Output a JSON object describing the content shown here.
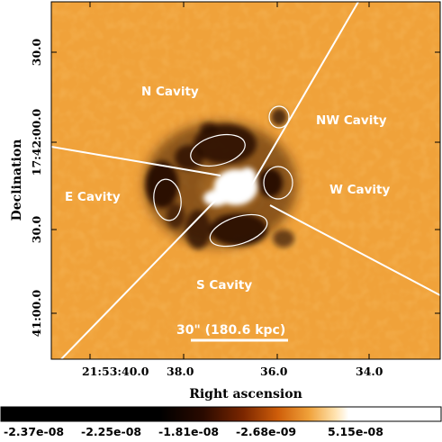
{
  "axes": {
    "x_title": "Right ascension",
    "y_title": "Declination",
    "x_ticks": [
      "21:53:40.0",
      "38.0",
      "36.0",
      "34.0"
    ],
    "y_ticks": [
      "30.0",
      "17:42:00.0",
      "30.0",
      "41:00.0"
    ]
  },
  "regions": {
    "n": "N Cavity",
    "nw": "NW Cavity",
    "e": "E Cavity",
    "w": "W Cavity",
    "s": "S Cavity"
  },
  "scale_bar": {
    "label": "30\" (180.6 kpc)"
  },
  "colorbar": {
    "ticks": [
      "-2.37e-08",
      "-2.25e-08",
      "-1.81e-08",
      "-2.68e-09",
      "5.15e-08"
    ]
  },
  "colors": {
    "background_orange": "#f0a23a",
    "deep_orange": "#e07812",
    "dark": "#0e0500",
    "core": "#ffffff",
    "overlay": "#ffffff"
  }
}
